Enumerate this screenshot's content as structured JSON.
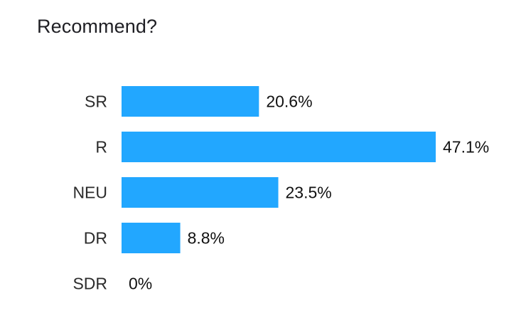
{
  "chart_data": {
    "type": "bar",
    "orientation": "horizontal",
    "title": "Recommend?",
    "categories": [
      "SR",
      "R",
      "NEU",
      "DR",
      "SDR"
    ],
    "values": [
      20.6,
      47.1,
      23.5,
      8.8,
      0
    ],
    "value_labels": [
      "20.6%",
      "47.1%",
      "23.5%",
      "8.8%",
      "0%"
    ],
    "unit": "%",
    "xlim": [
      0,
      47.1
    ],
    "grid": false,
    "bar_color": "#22a7ff"
  }
}
